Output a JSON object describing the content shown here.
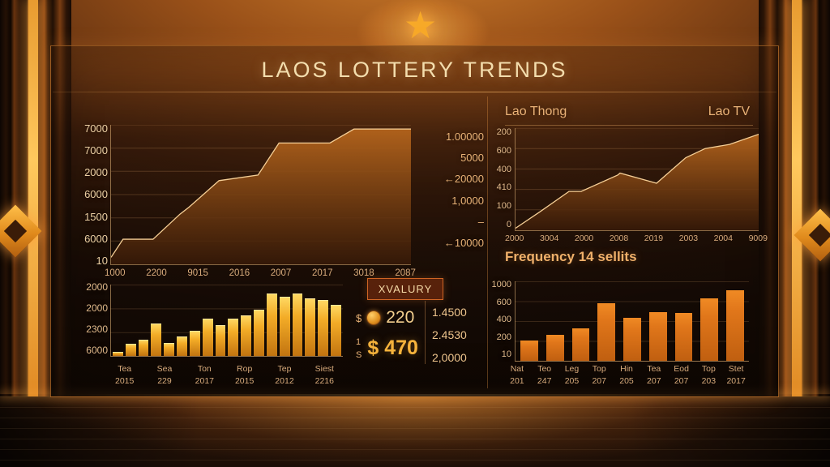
{
  "header": {
    "title": "LAOS LOTTERY TRENDS"
  },
  "colors": {
    "accent": "#f5a93c",
    "line": "#f6cf96",
    "area_top": "#b4641c",
    "area_bottom": "#381a08",
    "bar_gold": "#f3ac27",
    "bar_orange": "#e0761a",
    "star": "#f7a928",
    "panel_border": "#d88230",
    "text_gold": "#f3ddad",
    "text_axis": "#d8ab7c"
  },
  "chart_data": [
    {
      "id": "main-trend",
      "type": "area",
      "title": "LAOS LOTTERY TRENDS",
      "y_ticks": [
        "7000",
        "7000",
        "2000",
        "6000",
        "1500",
        "6000",
        "10"
      ],
      "x_ticks": [
        "1000",
        "2200",
        "9015",
        "2016",
        "2007",
        "2017",
        "3018",
        "2087"
      ],
      "right_axis_ticks": [
        "1.00000",
        "5000",
        "←20000",
        "1,0000",
        "–",
        "←10000"
      ],
      "points": [
        [
          0,
          5
        ],
        [
          4,
          18
        ],
        [
          14,
          18
        ],
        [
          23,
          36
        ],
        [
          26,
          41
        ],
        [
          36,
          60
        ],
        [
          49,
          64
        ],
        [
          56,
          87
        ],
        [
          73,
          87
        ],
        [
          81,
          97
        ],
        [
          100,
          97
        ]
      ],
      "grid": true,
      "legend": "none"
    },
    {
      "id": "lao-thong",
      "type": "area",
      "title_left": "Lao Thong",
      "title_right": "Lao TV",
      "y_ticks": [
        "200",
        "600",
        "400",
        "410",
        "100",
        "0"
      ],
      "x_ticks": [
        "2000",
        "3004",
        "2000",
        "2008",
        "2019",
        "2003",
        "2004",
        "9009"
      ],
      "points": [
        [
          0,
          2
        ],
        [
          10,
          18
        ],
        [
          22,
          38
        ],
        [
          27,
          38
        ],
        [
          42,
          54
        ],
        [
          43,
          56
        ],
        [
          52,
          50
        ],
        [
          58,
          46
        ],
        [
          70,
          71
        ],
        [
          78,
          80
        ],
        [
          88,
          84
        ],
        [
          100,
          94
        ]
      ],
      "grid": true,
      "legend": "none"
    },
    {
      "id": "gold-bars",
      "type": "bar",
      "y_ticks": [
        "2000",
        "2000",
        "2300",
        "6000"
      ],
      "ylim": [
        0,
        100
      ],
      "values": [
        6,
        17,
        23,
        46,
        18,
        27,
        35,
        52,
        43,
        52,
        57,
        65,
        87,
        83,
        88,
        81,
        78,
        72
      ],
      "x_labels_row1": [
        "Tea",
        "Sea",
        "Ton",
        "Rop",
        "Tep",
        "Siest"
      ],
      "x_labels_row2": [
        "2015",
        "229",
        "2017",
        "2015",
        "2012",
        "2216"
      ],
      "grid": true,
      "legend": "none"
    },
    {
      "id": "frequency-bars",
      "type": "bar",
      "title": "Frequency 14 sellits",
      "y_ticks": [
        "1000",
        "600",
        "400",
        "200",
        "10"
      ],
      "ylim": [
        0,
        1000
      ],
      "values": [
        260,
        330,
        410,
        720,
        540,
        610,
        600,
        790,
        890
      ],
      "x_labels_row1": [
        "Nat",
        "Teo",
        "Leg",
        "Top",
        "Hin",
        "Tea",
        "Eod",
        "Top",
        "Stet"
      ],
      "x_labels_row2": [
        "201",
        "247",
        "205",
        "207",
        "205",
        "207",
        "207",
        "203",
        "2017"
      ],
      "grid": true,
      "legend": "none"
    }
  ],
  "stats": {
    "box_label": "XVALURY",
    "row1": {
      "symbol": "$",
      "icon": "coin-icon",
      "value": "220"
    },
    "row2": {
      "symbol_top": "1",
      "symbol_bottom": "S",
      "currency": "$",
      "value": "470"
    },
    "right_values": [
      "1.4500",
      "2.4530",
      "2,0000"
    ]
  },
  "decor": {
    "star_glyph": "★"
  }
}
